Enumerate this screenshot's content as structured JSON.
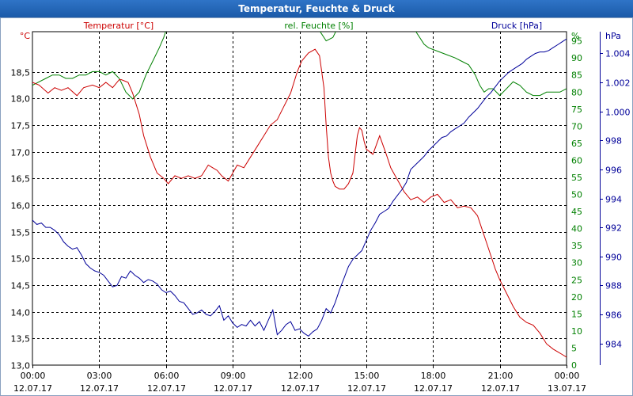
{
  "window": {
    "title": "Temperatur, Feuchte & Druck"
  },
  "chart_data": {
    "type": "line",
    "title": "Temperatur, Feuchte & Druck",
    "x_tick_labels": [
      [
        "00:00",
        "12.07.17"
      ],
      [
        "03:00",
        "12.07.17"
      ],
      [
        "06:00",
        "12.07.17"
      ],
      [
        "09:00",
        "12.07.17"
      ],
      [
        "12:00",
        "12.07.17"
      ],
      [
        "15:00",
        "12.07.17"
      ],
      [
        "18:00",
        "12.07.17"
      ],
      [
        "21:00",
        "12.07.17"
      ],
      [
        "00:00",
        "13.07.17"
      ]
    ],
    "xlim": [
      0,
      24
    ],
    "grid": true,
    "axes": {
      "temperature": {
        "label": "Temperatur [°C]",
        "unit": "°C",
        "color": "#cc0000",
        "ylim": [
          13.0,
          19.25
        ],
        "ticks": [
          "13,0",
          "13,5",
          "14,0",
          "14,5",
          "15,0",
          "15,5",
          "16,0",
          "16,5",
          "17,0",
          "17,5",
          "18,0",
          "18,5"
        ]
      },
      "humidity": {
        "label": "rel. Feuchte [%]",
        "unit": "%",
        "color": "#008000",
        "ylim": [
          0,
          97.7
        ],
        "ticks": [
          "0",
          "5",
          "10",
          "15",
          "20",
          "25",
          "30",
          "35",
          "40",
          "45",
          "50",
          "55",
          "60",
          "65",
          "70",
          "75",
          "80",
          "85",
          "90",
          "95"
        ]
      },
      "pressure": {
        "label": "Druck [hPa]",
        "unit": "hPa",
        "color": "#000099",
        "ylim": [
          982.5,
          1005.5
        ],
        "ticks": [
          "984",
          "986",
          "988",
          "990",
          "992",
          "994",
          "996",
          "998",
          "1.000",
          "1.002",
          "1.004"
        ]
      }
    },
    "series": [
      {
        "name": "Temperatur [°C]",
        "axis": "temperature",
        "color": "#cc0000",
        "x": [
          0,
          0.3,
          0.7,
          1,
          1.3,
          1.6,
          2,
          2.3,
          2.7,
          3,
          3.3,
          3.6,
          3.9,
          4,
          4.3,
          4.5,
          4.8,
          5,
          5.3,
          5.6,
          5.9,
          6.1,
          6.4,
          6.7,
          7,
          7.3,
          7.6,
          7.9,
          8.1,
          8.3,
          8.5,
          8.8,
          9,
          9.2,
          9.5,
          9.8,
          10.1,
          10.4,
          10.7,
          11,
          11.3,
          11.6,
          11.9,
          12.1,
          12.4,
          12.7,
          12.9,
          13.1,
          13.2,
          13.3,
          13.4,
          13.5,
          13.6,
          13.8,
          14,
          14.2,
          14.4,
          14.6,
          14.7,
          14.8,
          14.9,
          15,
          15.3,
          15.6,
          15.9,
          16.1,
          16.3,
          16.5,
          16.7,
          17,
          17.3,
          17.6,
          17.9,
          18.2,
          18.5,
          18.8,
          19.1,
          19.4,
          19.7,
          20,
          20.2,
          20.4,
          20.6,
          20.8,
          21,
          21.3,
          21.6,
          21.9,
          22.2,
          22.5,
          22.8,
          23.1,
          23.4,
          23.6,
          23.8,
          24
        ],
        "y": [
          18.3,
          18.25,
          18.1,
          18.2,
          18.15,
          18.2,
          18.05,
          18.2,
          18.25,
          18.2,
          18.3,
          18.2,
          18.35,
          18.35,
          18.3,
          18.1,
          17.7,
          17.3,
          16.9,
          16.6,
          16.5,
          16.4,
          16.55,
          16.5,
          16.55,
          16.5,
          16.55,
          16.75,
          16.7,
          16.65,
          16.55,
          16.45,
          16.6,
          16.75,
          16.7,
          16.9,
          17.1,
          17.3,
          17.5,
          17.6,
          17.85,
          18.1,
          18.5,
          18.7,
          18.85,
          18.92,
          18.8,
          18.2,
          17.5,
          16.9,
          16.6,
          16.45,
          16.35,
          16.3,
          16.3,
          16.4,
          16.6,
          17.3,
          17.45,
          17.4,
          17.2,
          17.05,
          16.95,
          17.3,
          16.95,
          16.7,
          16.55,
          16.4,
          16.25,
          16.1,
          16.15,
          16.05,
          16.15,
          16.2,
          16.05,
          16.1,
          15.95,
          15.98,
          15.95,
          15.8,
          15.55,
          15.3,
          15.05,
          14.8,
          14.6,
          14.35,
          14.1,
          13.9,
          13.8,
          13.75,
          13.6,
          13.4,
          13.3,
          13.25,
          13.2,
          13.15
        ]
      },
      {
        "name": "rel. Feuchte [%]",
        "axis": "humidity",
        "color": "#008000",
        "x": [
          0,
          0.3,
          0.6,
          0.9,
          1.2,
          1.5,
          1.8,
          2.1,
          2.4,
          2.7,
          3,
          3.3,
          3.6,
          3.9,
          4.2,
          4.5,
          4.8,
          5.1,
          5.4,
          5.7,
          5.9,
          6,
          6.2,
          6.5,
          8.7,
          9,
          11,
          12.3,
          12.6,
          12.9,
          13.2,
          13.5,
          13.8,
          14,
          16,
          16.3,
          16.5,
          16.8,
          17.2,
          17.6,
          17.8,
          18.2,
          18.6,
          19,
          19.3,
          19.6,
          19.9,
          20.1,
          20.3,
          20.5,
          20.7,
          21,
          21.3,
          21.6,
          21.9,
          22.2,
          22.5,
          22.8,
          23.1,
          23.4,
          23.7,
          24
        ],
        "y": [
          82,
          83,
          84,
          85,
          85,
          84,
          84,
          85,
          85,
          86,
          86,
          85,
          86,
          84,
          80,
          78,
          80,
          85,
          89,
          93,
          96,
          98,
          100,
          100,
          100,
          100,
          100,
          100,
          99,
          98,
          95,
          96,
          100,
          100,
          100,
          99,
          100,
          100,
          98,
          94,
          93,
          92,
          91,
          90,
          89,
          88,
          85,
          82,
          80,
          81,
          81,
          79,
          81,
          83,
          82,
          80,
          79,
          79,
          80,
          80,
          80,
          81
        ]
      },
      {
        "name": "Druck [hPa]",
        "axis": "pressure",
        "color": "#000099",
        "x": [
          0,
          0.2,
          0.4,
          0.6,
          0.8,
          1,
          1.2,
          1.4,
          1.6,
          1.8,
          2,
          2.2,
          2.4,
          2.6,
          2.8,
          3,
          3.2,
          3.4,
          3.6,
          3.8,
          4,
          4.2,
          4.4,
          4.6,
          4.8,
          5,
          5.2,
          5.4,
          5.6,
          5.8,
          6,
          6.2,
          6.4,
          6.6,
          6.8,
          7,
          7.2,
          7.4,
          7.6,
          7.8,
          8,
          8.2,
          8.4,
          8.6,
          8.8,
          9,
          9.2,
          9.4,
          9.6,
          9.8,
          10,
          10.2,
          10.4,
          10.6,
          10.8,
          11,
          11.2,
          11.4,
          11.6,
          11.8,
          12,
          12.2,
          12.4,
          12.6,
          12.8,
          13,
          13.2,
          13.4,
          13.6,
          13.8,
          14,
          14.2,
          14.4,
          14.6,
          14.8,
          15,
          15.2,
          15.4,
          15.6,
          15.8,
          16,
          16.2,
          16.4,
          16.6,
          16.8,
          17,
          17.2,
          17.4,
          17.6,
          17.8,
          18,
          18.2,
          18.4,
          18.6,
          18.8,
          19,
          19.2,
          19.4,
          19.6,
          19.8,
          20,
          20.2,
          20.4,
          20.6,
          20.8,
          21,
          21.2,
          21.4,
          21.6,
          21.8,
          22,
          22.2,
          22.4,
          22.6,
          22.8,
          23,
          23.2,
          23.4,
          23.6,
          23.8,
          24
        ],
        "y": [
          992.5,
          992.2,
          992.3,
          992,
          992,
          991.8,
          991.5,
          991,
          990.7,
          990.5,
          990.6,
          990.1,
          989.5,
          989.2,
          989,
          988.9,
          988.7,
          988.3,
          987.9,
          988,
          988.6,
          988.5,
          989,
          988.7,
          988.5,
          988.2,
          988.4,
          988.3,
          988.1,
          987.7,
          987.5,
          987.6,
          987.3,
          986.9,
          986.8,
          986.4,
          986,
          986.1,
          986.3,
          986,
          985.9,
          986.2,
          986.6,
          985.6,
          985.9,
          985.4,
          985.1,
          985.3,
          985.2,
          985.6,
          985.2,
          985.5,
          984.9,
          985.6,
          986.3,
          984.6,
          984.9,
          985.3,
          985.5,
          984.9,
          985,
          984.7,
          984.5,
          984.8,
          985,
          985.6,
          986.4,
          986.1,
          986.8,
          987.7,
          988.5,
          989.3,
          989.8,
          990.1,
          990.4,
          991.1,
          991.8,
          992.3,
          992.9,
          993.1,
          993.3,
          993.8,
          994.2,
          994.6,
          995.1,
          996,
          996.3,
          996.6,
          996.9,
          997.3,
          997.6,
          997.9,
          998.2,
          998.3,
          998.6,
          998.8,
          999,
          999.2,
          999.6,
          999.9,
          1000.2,
          1000.6,
          1001,
          1001.3,
          1001.7,
          1002.1,
          1002.4,
          1002.7,
          1002.9,
          1003.1,
          1003.3,
          1003.6,
          1003.8,
          1004,
          1004.1,
          1004.1,
          1004.2,
          1004.4,
          1004.6,
          1004.8,
          1005
        ]
      }
    ]
  }
}
